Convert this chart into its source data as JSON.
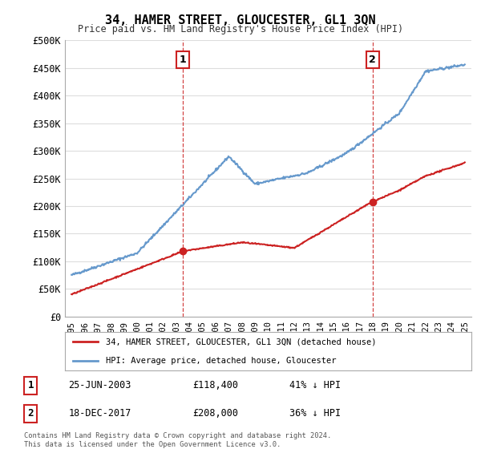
{
  "title": "34, HAMER STREET, GLOUCESTER, GL1 3QN",
  "subtitle": "Price paid vs. HM Land Registry's House Price Index (HPI)",
  "ylabel_ticks": [
    "£0",
    "£50K",
    "£100K",
    "£150K",
    "£200K",
    "£250K",
    "£300K",
    "£350K",
    "£400K",
    "£450K",
    "£500K"
  ],
  "ytick_vals": [
    0,
    50000,
    100000,
    150000,
    200000,
    250000,
    300000,
    350000,
    400000,
    450000,
    500000
  ],
  "xlim": [
    1994.5,
    2025.5
  ],
  "ylim": [
    0,
    500000
  ],
  "hpi_color": "#6699cc",
  "price_color": "#cc2222",
  "marker1_x": 2003.48,
  "marker1_y": 118400,
  "marker2_x": 2017.96,
  "marker2_y": 208000,
  "legend_label1": "34, HAMER STREET, GLOUCESTER, GL1 3QN (detached house)",
  "legend_label2": "HPI: Average price, detached house, Gloucester",
  "table_row1": [
    "1",
    "25-JUN-2003",
    "£118,400",
    "41% ↓ HPI"
  ],
  "table_row2": [
    "2",
    "18-DEC-2017",
    "£208,000",
    "36% ↓ HPI"
  ],
  "footer": "Contains HM Land Registry data © Crown copyright and database right 2024.\nThis data is licensed under the Open Government Licence v3.0.",
  "background_color": "#ffffff",
  "grid_color": "#dddddd"
}
